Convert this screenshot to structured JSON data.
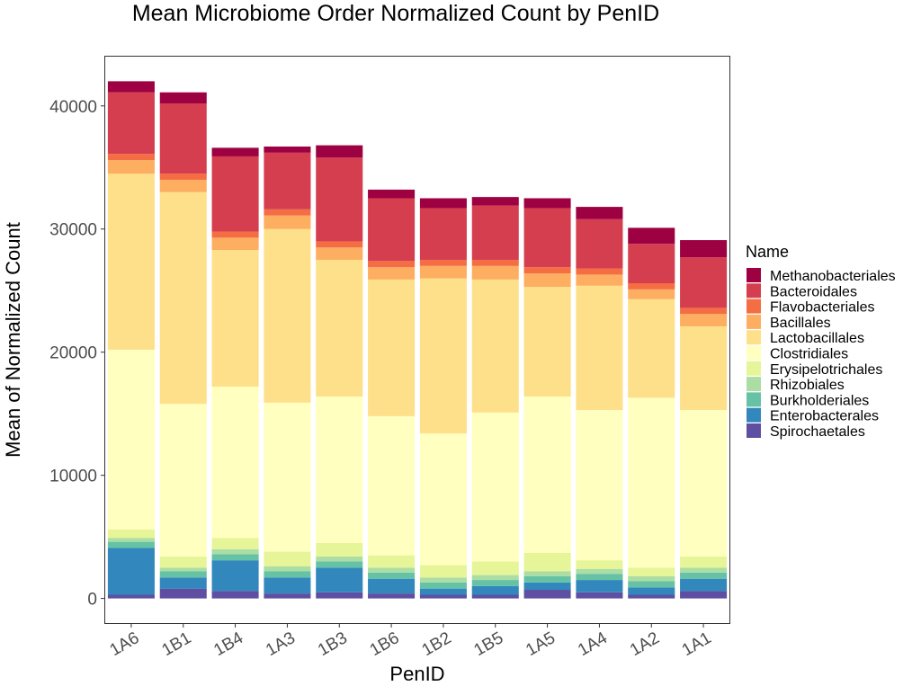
{
  "chart_data": {
    "type": "bar",
    "stacked": true,
    "title": "Mean Microbiome Order Normalized Count by PenID",
    "xlabel": "PenID",
    "ylabel": "Mean of Normalized Count",
    "ylim": [
      -2000,
      44000
    ],
    "yticks": [
      0,
      10000,
      20000,
      30000,
      40000
    ],
    "grid": false,
    "legend_title": "Name",
    "legend_position": "right",
    "categories": [
      "1A6",
      "1B1",
      "1B4",
      "1A3",
      "1B3",
      "1B6",
      "1B2",
      "1B5",
      "1A5",
      "1A4",
      "1A2",
      "1A1"
    ],
    "series": [
      {
        "name": "Spirochaetales",
        "color": "#5E4FA2",
        "values": [
          300,
          800,
          600,
          400,
          500,
          400,
          300,
          300,
          700,
          500,
          300,
          600
        ]
      },
      {
        "name": "Enterobacterales",
        "color": "#3288BD",
        "values": [
          3800,
          900,
          2500,
          1300,
          2000,
          1200,
          500,
          700,
          600,
          1000,
          600,
          1000
        ]
      },
      {
        "name": "Burkholderiales",
        "color": "#66C2A5",
        "values": [
          500,
          500,
          500,
          500,
          500,
          500,
          500,
          500,
          500,
          500,
          500,
          500
        ]
      },
      {
        "name": "Rhizobiales",
        "color": "#ABDDA4",
        "values": [
          300,
          300,
          400,
          400,
          400,
          400,
          400,
          400,
          400,
          400,
          400,
          400
        ]
      },
      {
        "name": "Erysipelotrichales",
        "color": "#E6F598",
        "values": [
          700,
          900,
          900,
          1200,
          1100,
          1000,
          1000,
          1100,
          1500,
          700,
          700,
          900
        ]
      },
      {
        "name": "Clostridiales",
        "color": "#FFFFBF",
        "values": [
          14600,
          12400,
          12300,
          12100,
          11900,
          11300,
          10700,
          12100,
          12700,
          12200,
          13800,
          11900
        ]
      },
      {
        "name": "Lactobacillales",
        "color": "#FEE08B",
        "values": [
          14300,
          17200,
          11100,
          14100,
          11100,
          11100,
          12600,
          10800,
          8900,
          10100,
          8000,
          6800
        ]
      },
      {
        "name": "Bacillales",
        "color": "#FDAE61",
        "values": [
          1100,
          1000,
          1000,
          1100,
          1000,
          1000,
          1000,
          1100,
          1100,
          900,
          800,
          1000
        ]
      },
      {
        "name": "Flavobacteriales",
        "color": "#F46D43",
        "values": [
          500,
          500,
          500,
          500,
          500,
          500,
          500,
          500,
          500,
          500,
          500,
          500
        ]
      },
      {
        "name": "Bacteroidales",
        "color": "#D53E4F",
        "values": [
          5000,
          5700,
          6100,
          4600,
          6800,
          5100,
          4200,
          4400,
          4800,
          4000,
          3200,
          4100
        ]
      },
      {
        "name": "Methanobacteriales",
        "color": "#9E0142",
        "values": [
          900,
          900,
          700,
          500,
          1000,
          700,
          800,
          700,
          800,
          1000,
          1300,
          1400
        ]
      }
    ]
  }
}
